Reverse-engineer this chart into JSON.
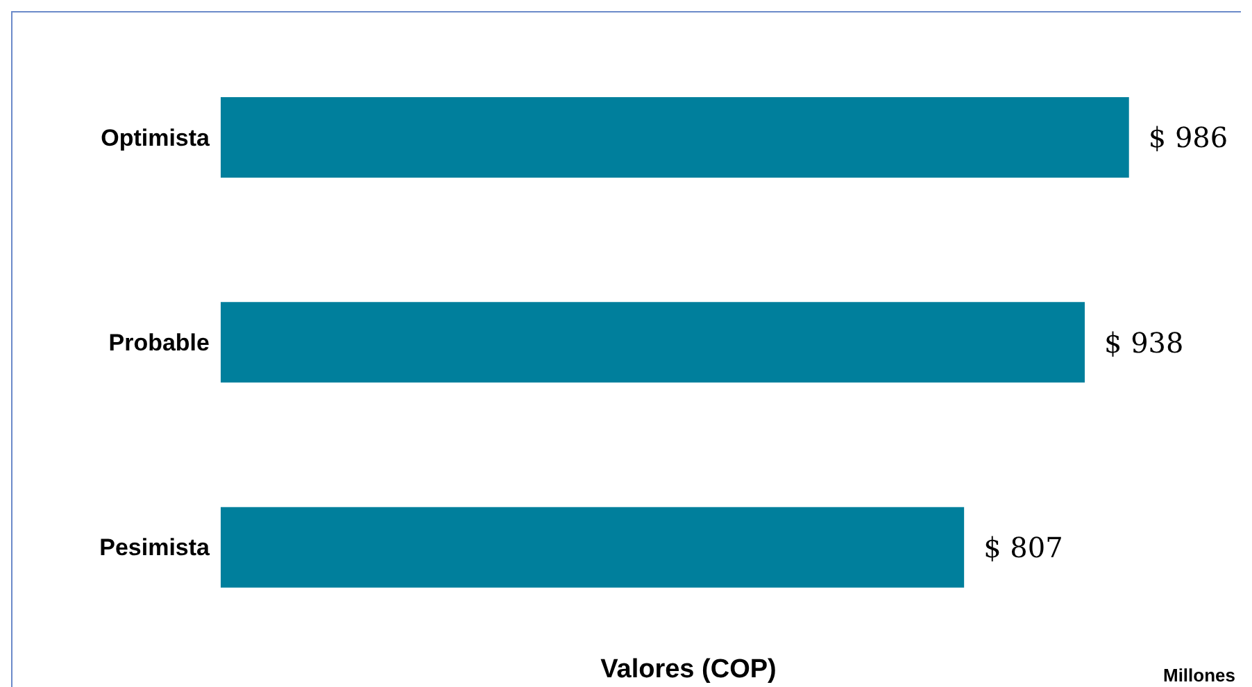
{
  "chart_data": {
    "type": "bar",
    "orientation": "horizontal",
    "xlabel": "Valores (COP)",
    "annotations": [
      "Millones"
    ],
    "categories": [
      "Optimista",
      "Probable",
      "Pesimista"
    ],
    "values": [
      986,
      938,
      807
    ],
    "value_labels": [
      "$ 986",
      "$ 938",
      "$ 807"
    ],
    "color": "#007f9c",
    "grid": false,
    "legend": false
  }
}
